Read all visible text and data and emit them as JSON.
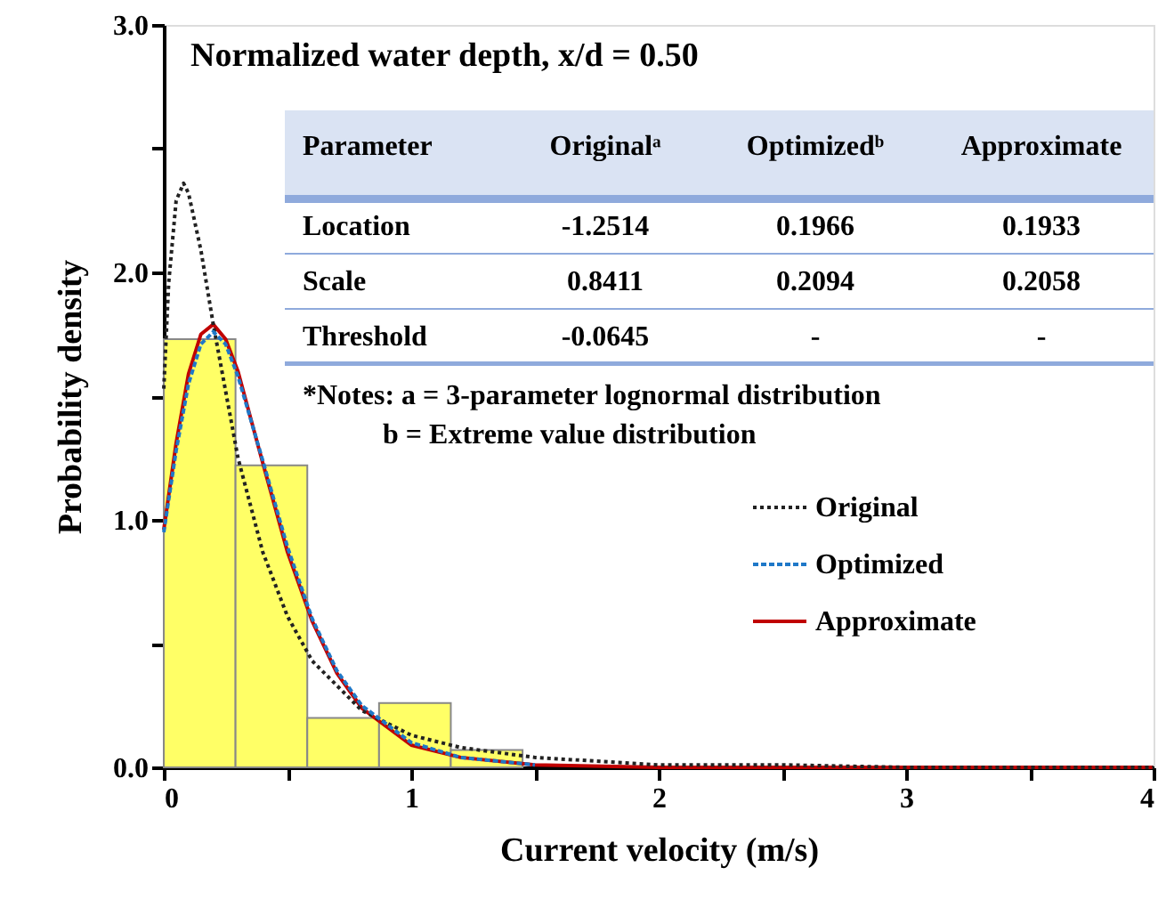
{
  "chart_data": {
    "type": "histogram",
    "title": "Normalized water depth, x/d = 0.50",
    "xlabel": "Current velocity (m/s)",
    "ylabel": "Probability density",
    "bins": [
      0,
      0.29,
      0.58,
      0.87,
      1.16,
      1.45
    ],
    "values": [
      1.73,
      1.22,
      0.2,
      0.26,
      0.07
    ],
    "color": "#ffff66",
    "series": [
      {
        "name": "Original",
        "type": "line",
        "color": "#222222",
        "line_style": "dotted",
        "x": [
          0,
          0.02,
          0.05,
          0.08,
          0.1,
          0.15,
          0.2,
          0.3,
          0.4,
          0.5,
          0.6,
          0.8,
          1.0,
          1.2,
          1.5,
          2,
          2.5,
          3,
          4
        ],
        "values": [
          1.53,
          1.96,
          2.29,
          2.36,
          2.32,
          2.09,
          1.79,
          1.25,
          0.87,
          0.61,
          0.43,
          0.23,
          0.13,
          0.08,
          0.04,
          0.01,
          0.01,
          0,
          0
        ]
      },
      {
        "name": "Optimized",
        "type": "line",
        "color": "#1f78c8",
        "line_style": "dashed",
        "x": [
          0,
          0.05,
          0.1,
          0.15,
          0.2,
          0.25,
          0.3,
          0.4,
          0.5,
          0.6,
          0.7,
          0.8,
          1.0,
          1.2,
          1.5
        ],
        "values": [
          0.95,
          1.28,
          1.55,
          1.71,
          1.76,
          1.71,
          1.58,
          1.24,
          0.89,
          0.6,
          0.39,
          0.25,
          0.1,
          0.04,
          0.01
        ]
      },
      {
        "name": "Approximate",
        "type": "line",
        "color": "#c00000",
        "line_style": "solid",
        "x": [
          0,
          0.05,
          0.1,
          0.15,
          0.2,
          0.25,
          0.3,
          0.4,
          0.5,
          0.6,
          0.7,
          0.8,
          1.0,
          1.2,
          1.5,
          2,
          3,
          4
        ],
        "values": [
          0.96,
          1.31,
          1.59,
          1.75,
          1.79,
          1.73,
          1.6,
          1.23,
          0.87,
          0.59,
          0.38,
          0.24,
          0.09,
          0.04,
          0.01,
          0,
          0,
          0
        ]
      }
    ],
    "xlim": [
      0,
      4
    ],
    "ylim": [
      0,
      3
    ],
    "xticks": [
      0,
      {
        "value": 0.5,
        "label": null
      },
      1,
      {
        "value": 1.5,
        "label": null
      },
      2,
      {
        "value": 2.5,
        "label": null
      },
      3,
      {
        "value": 3.5,
        "label": null
      },
      4
    ],
    "yticks": [
      {
        "value": 0,
        "label": "0.0"
      },
      {
        "value": 0.5,
        "label": null
      },
      {
        "value": 1,
        "label": "1.0"
      },
      {
        "value": 1.5,
        "label": null
      },
      {
        "value": 2,
        "label": "2.0"
      },
      {
        "value": 2.5,
        "label": null
      },
      {
        "value": 3,
        "label": "3.0"
      }
    ],
    "grid": false,
    "legend": "right",
    "annotations": [
      "Parameter",
      "Originalᵃ",
      "Optimizedᵇ",
      "Approximate",
      "Location",
      "-1.2514",
      "0.1966",
      "0.1933",
      "Scale",
      "0.8411",
      "0.2094",
      "0.2058",
      "Threshold",
      "-0.0645",
      "-",
      "-",
      "*Notes: a = 3-parameter lognormal distribution",
      "b = Extreme value distribution"
    ]
  }
}
